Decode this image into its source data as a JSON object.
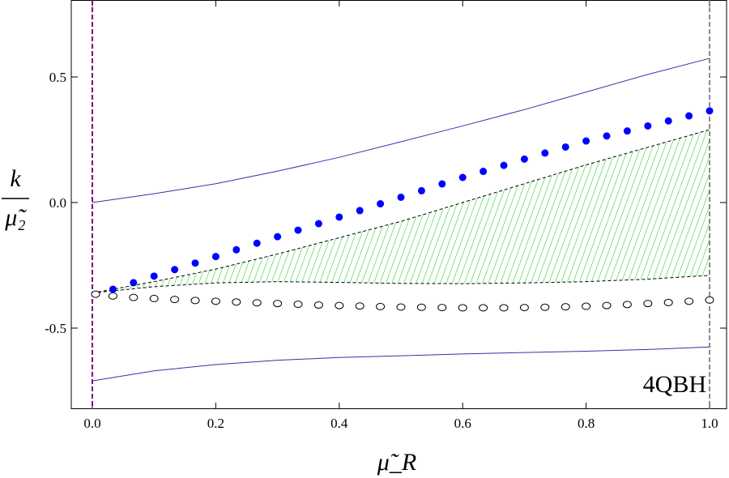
{
  "chart_data": {
    "type": "scatter",
    "title": "",
    "xlabel": "μ̃_R",
    "ylabel_num": "k",
    "ylabel_den": "μ̃₂",
    "annotation": "4QBH",
    "xlim": [
      -0.03,
      1.03
    ],
    "ylim": [
      -0.823,
      0.806
    ],
    "xticks": [
      "0.0",
      "0.2",
      "0.4",
      "0.6",
      "0.8",
      "1.0"
    ],
    "xtick_values": [
      0,
      0.2,
      0.4,
      0.6,
      0.8,
      1.0
    ],
    "yticks": [
      "0.5",
      "0.0",
      "-0.5"
    ],
    "ytick_values": [
      0.5,
      0,
      -0.5
    ],
    "colors": {
      "filled": "#0000ff",
      "open": "#000000",
      "lines": "#3333aa",
      "hatch": "#00cc00",
      "left_vline": "#800080",
      "right_vline": "#666666"
    },
    "vlines": [
      0,
      1
    ],
    "filled_points": {
      "x_step": 0.0333333,
      "x_start_index": 1,
      "y": [
        -0.345,
        -0.319,
        -0.293,
        -0.267,
        -0.241,
        -0.215,
        -0.188,
        -0.162,
        -0.136,
        -0.11,
        -0.084,
        -0.058,
        -0.032,
        -0.005,
        0.021,
        0.047,
        0.074,
        0.1,
        0.124,
        0.148,
        0.173,
        0.197,
        0.221,
        0.245,
        0.265,
        0.285,
        0.305,
        0.325,
        0.345,
        0.365
      ]
    },
    "open_points": {
      "x_step": 0.0333333,
      "x_start_index": 0,
      "y": [
        -0.365,
        -0.372,
        -0.378,
        -0.382,
        -0.386,
        -0.39,
        -0.393,
        -0.396,
        -0.399,
        -0.402,
        -0.405,
        -0.408,
        -0.41,
        -0.412,
        -0.414,
        -0.416,
        -0.417,
        -0.418,
        -0.419,
        -0.419,
        -0.419,
        -0.418,
        -0.417,
        -0.415,
        -0.413,
        -0.41,
        -0.406,
        -0.402,
        -0.398,
        -0.393,
        -0.388
      ]
    },
    "curve_x": [
      0,
      0.1,
      0.2,
      0.3,
      0.4,
      0.5,
      0.6,
      0.7,
      0.8,
      0.9,
      1.0
    ],
    "upper_line": [
      0,
      0.035,
      0.075,
      0.125,
      0.18,
      0.242,
      0.305,
      0.37,
      0.44,
      0.51,
      0.574
    ],
    "lower_line": [
      -0.71,
      -0.67,
      -0.645,
      -0.628,
      -0.617,
      -0.61,
      -0.603,
      -0.597,
      -0.592,
      -0.585,
      -0.575
    ],
    "region_upper": [
      -0.36,
      -0.315,
      -0.265,
      -0.205,
      -0.14,
      -0.075,
      0.0,
      0.075,
      0.15,
      0.22,
      0.29
    ],
    "region_lower": [
      -0.36,
      -0.335,
      -0.32,
      -0.315,
      -0.318,
      -0.322,
      -0.323,
      -0.32,
      -0.315,
      -0.305,
      -0.29
    ]
  }
}
